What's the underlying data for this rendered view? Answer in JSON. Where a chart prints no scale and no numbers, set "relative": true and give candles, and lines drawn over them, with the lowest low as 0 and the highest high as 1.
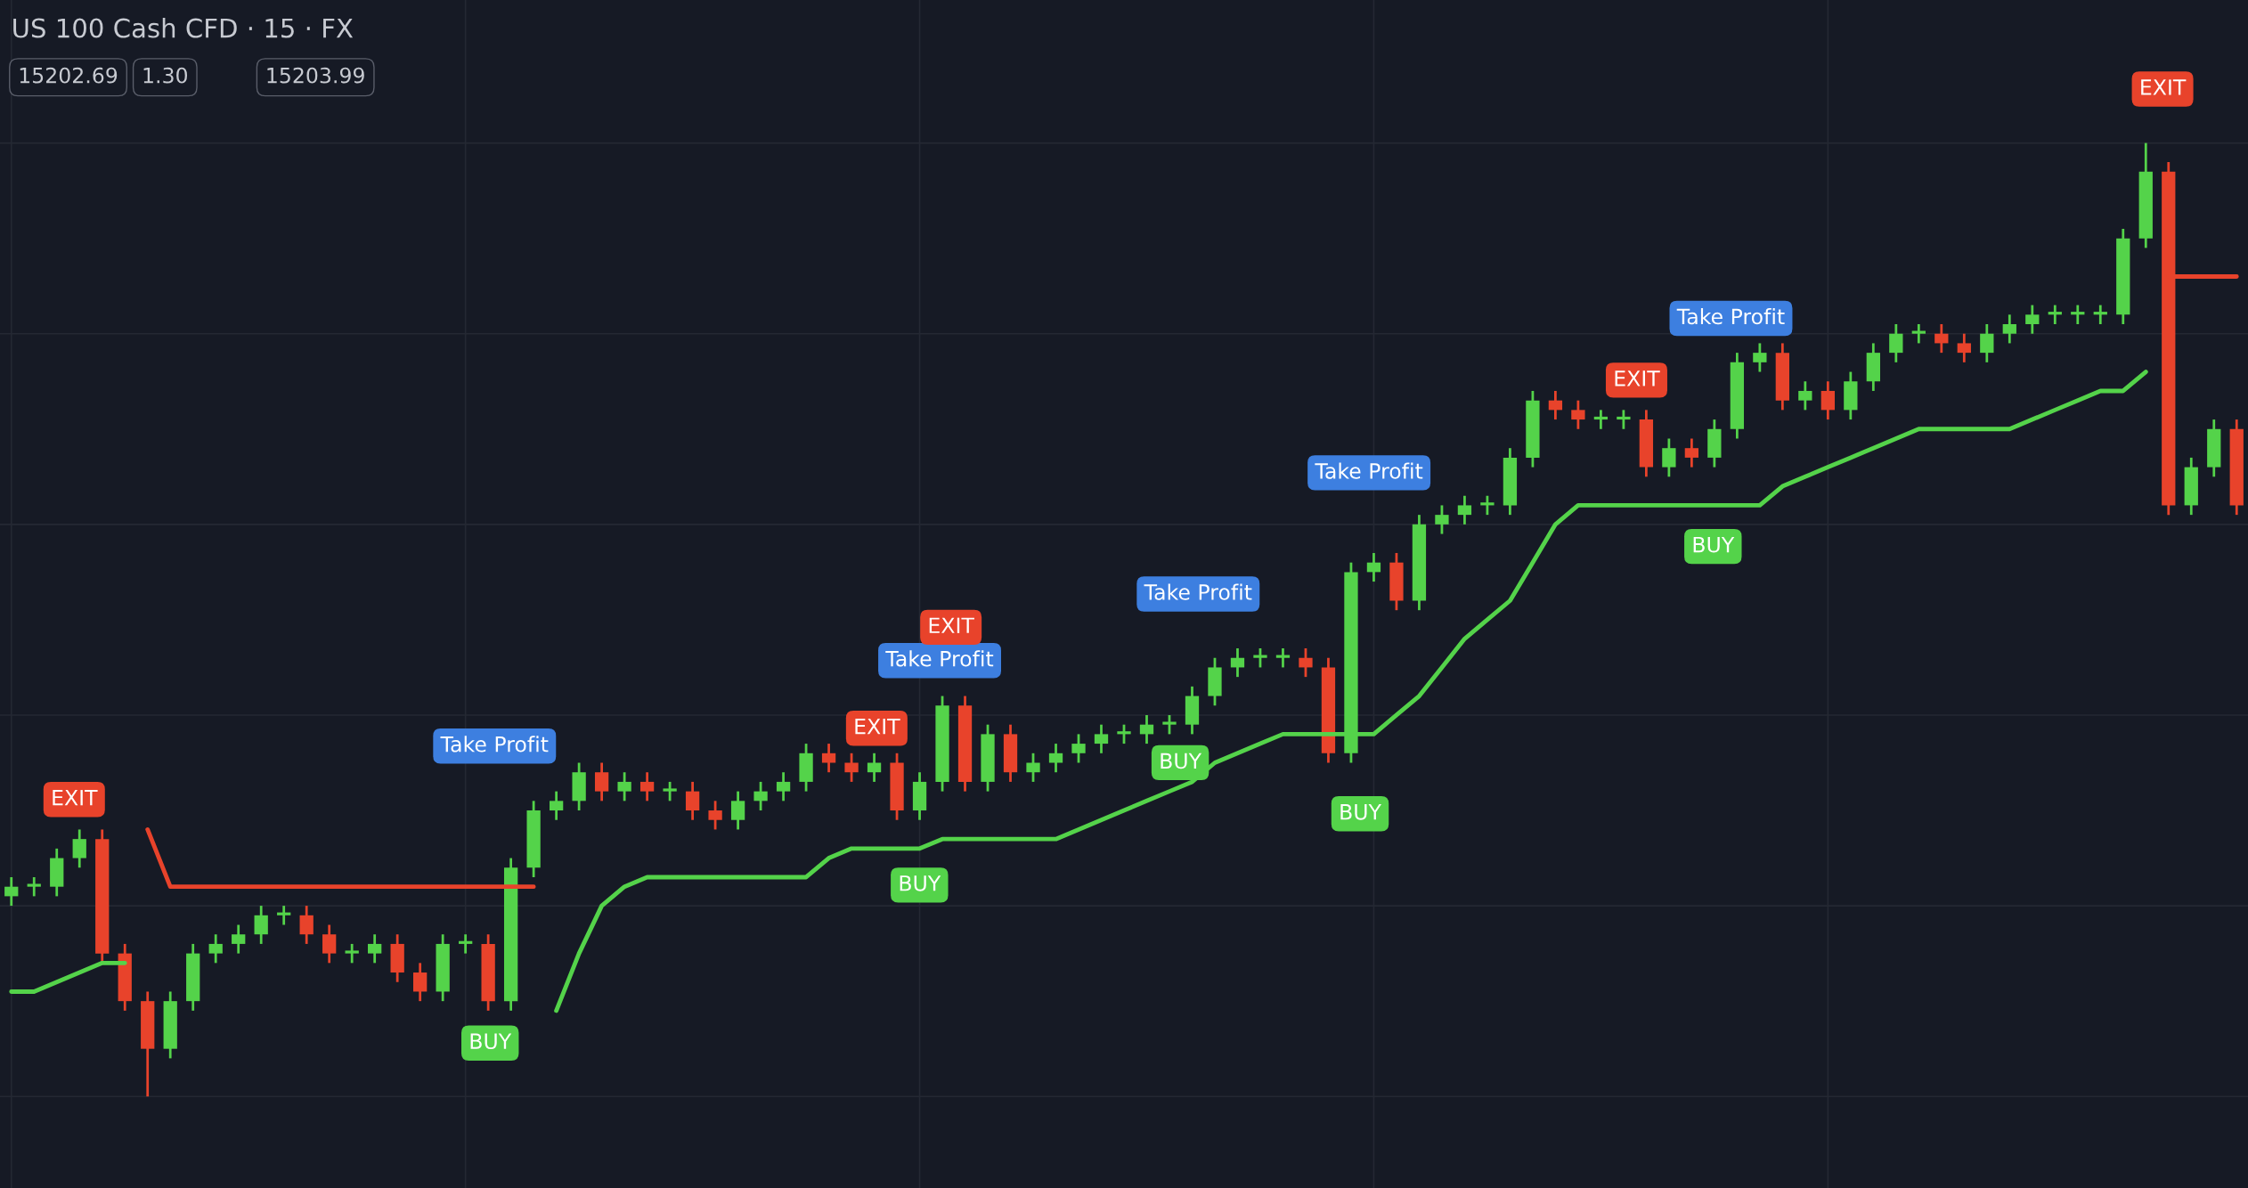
{
  "chart_data": {
    "type": "candlestick",
    "relative": true,
    "title": "US 100 Cash CFD · 15 · FX",
    "grid": true,
    "categories": [
      null,
      null,
      null,
      null,
      null,
      null,
      null,
      null,
      null,
      null,
      null,
      null,
      null,
      null,
      null,
      null,
      null,
      null,
      null,
      null,
      null,
      null,
      null,
      null,
      null,
      null,
      null,
      null,
      null,
      null,
      null,
      null,
      null,
      null,
      null,
      null,
      null,
      null,
      null,
      null,
      null,
      null,
      null,
      null,
      null,
      null,
      null,
      null,
      null,
      null,
      null,
      null,
      null,
      null,
      null,
      null,
      null,
      null,
      null,
      null,
      null,
      null,
      null,
      null,
      null,
      null,
      null,
      null,
      null,
      null,
      null,
      null,
      null,
      null,
      null,
      null,
      null,
      null,
      null,
      null,
      null,
      null,
      null,
      null,
      null,
      null,
      null,
      null,
      null,
      null,
      null,
      null,
      null,
      null,
      null,
      null,
      null,
      null,
      null
    ],
    "ohlc": [
      [
        0.21,
        0.23,
        0.2,
        0.22
      ],
      [
        0.22,
        0.23,
        0.21,
        0.22
      ],
      [
        0.22,
        0.26,
        0.21,
        0.25
      ],
      [
        0.25,
        0.28,
        0.24,
        0.27
      ],
      [
        0.27,
        0.28,
        0.14,
        0.15
      ],
      [
        0.15,
        0.16,
        0.09,
        0.1
      ],
      [
        0.1,
        0.11,
        0.0,
        0.05
      ],
      [
        0.05,
        0.11,
        0.04,
        0.1
      ],
      [
        0.1,
        0.16,
        0.09,
        0.15
      ],
      [
        0.15,
        0.17,
        0.14,
        0.16
      ],
      [
        0.16,
        0.18,
        0.15,
        0.17
      ],
      [
        0.17,
        0.2,
        0.16,
        0.19
      ],
      [
        0.19,
        0.2,
        0.18,
        0.19
      ],
      [
        0.19,
        0.2,
        0.16,
        0.17
      ],
      [
        0.17,
        0.18,
        0.14,
        0.15
      ],
      [
        0.15,
        0.16,
        0.14,
        0.15
      ],
      [
        0.15,
        0.17,
        0.14,
        0.16
      ],
      [
        0.16,
        0.17,
        0.12,
        0.13
      ],
      [
        0.13,
        0.14,
        0.1,
        0.11
      ],
      [
        0.11,
        0.17,
        0.1,
        0.16
      ],
      [
        0.16,
        0.17,
        0.15,
        0.16
      ],
      [
        0.16,
        0.17,
        0.09,
        0.1
      ],
      [
        0.1,
        0.25,
        0.09,
        0.24
      ],
      [
        0.24,
        0.31,
        0.23,
        0.3
      ],
      [
        0.3,
        0.32,
        0.29,
        0.31
      ],
      [
        0.31,
        0.35,
        0.3,
        0.34
      ],
      [
        0.34,
        0.35,
        0.31,
        0.32
      ],
      [
        0.32,
        0.34,
        0.31,
        0.33
      ],
      [
        0.33,
        0.34,
        0.31,
        0.32
      ],
      [
        0.32,
        0.33,
        0.31,
        0.32
      ],
      [
        0.32,
        0.33,
        0.29,
        0.3
      ],
      [
        0.3,
        0.31,
        0.28,
        0.29
      ],
      [
        0.29,
        0.32,
        0.28,
        0.31
      ],
      [
        0.31,
        0.33,
        0.3,
        0.32
      ],
      [
        0.32,
        0.34,
        0.31,
        0.33
      ],
      [
        0.33,
        0.37,
        0.32,
        0.36
      ],
      [
        0.36,
        0.37,
        0.34,
        0.35
      ],
      [
        0.35,
        0.36,
        0.33,
        0.34
      ],
      [
        0.34,
        0.36,
        0.33,
        0.35
      ],
      [
        0.35,
        0.36,
        0.29,
        0.3
      ],
      [
        0.3,
        0.34,
        0.29,
        0.33
      ],
      [
        0.33,
        0.42,
        0.32,
        0.41
      ],
      [
        0.41,
        0.42,
        0.32,
        0.33
      ],
      [
        0.33,
        0.39,
        0.32,
        0.38
      ],
      [
        0.38,
        0.39,
        0.33,
        0.34
      ],
      [
        0.34,
        0.36,
        0.33,
        0.35
      ],
      [
        0.35,
        0.37,
        0.34,
        0.36
      ],
      [
        0.36,
        0.38,
        0.35,
        0.37
      ],
      [
        0.37,
        0.39,
        0.36,
        0.38
      ],
      [
        0.38,
        0.39,
        0.37,
        0.38
      ],
      [
        0.38,
        0.4,
        0.37,
        0.39
      ],
      [
        0.39,
        0.4,
        0.38,
        0.39
      ],
      [
        0.39,
        0.43,
        0.38,
        0.42
      ],
      [
        0.42,
        0.46,
        0.41,
        0.45
      ],
      [
        0.45,
        0.47,
        0.44,
        0.46
      ],
      [
        0.46,
        0.47,
        0.45,
        0.46
      ],
      [
        0.46,
        0.47,
        0.45,
        0.46
      ],
      [
        0.46,
        0.47,
        0.44,
        0.45
      ],
      [
        0.45,
        0.46,
        0.35,
        0.36
      ],
      [
        0.36,
        0.56,
        0.35,
        0.55
      ],
      [
        0.55,
        0.57,
        0.54,
        0.56
      ],
      [
        0.56,
        0.57,
        0.51,
        0.52
      ],
      [
        0.52,
        0.61,
        0.51,
        0.6
      ],
      [
        0.6,
        0.62,
        0.59,
        0.61
      ],
      [
        0.61,
        0.63,
        0.6,
        0.62
      ],
      [
        0.62,
        0.63,
        0.61,
        0.62
      ],
      [
        0.62,
        0.68,
        0.61,
        0.67
      ],
      [
        0.67,
        0.74,
        0.66,
        0.73
      ],
      [
        0.73,
        0.74,
        0.71,
        0.72
      ],
      [
        0.72,
        0.73,
        0.7,
        0.71
      ],
      [
        0.71,
        0.72,
        0.7,
        0.71
      ],
      [
        0.71,
        0.72,
        0.7,
        0.71
      ],
      [
        0.71,
        0.72,
        0.65,
        0.66
      ],
      [
        0.66,
        0.69,
        0.65,
        0.68
      ],
      [
        0.68,
        0.69,
        0.66,
        0.67
      ],
      [
        0.67,
        0.71,
        0.66,
        0.7
      ],
      [
        0.7,
        0.78,
        0.69,
        0.77
      ],
      [
        0.77,
        0.79,
        0.76,
        0.78
      ],
      [
        0.78,
        0.79,
        0.72,
        0.73
      ],
      [
        0.73,
        0.75,
        0.72,
        0.74
      ],
      [
        0.74,
        0.75,
        0.71,
        0.72
      ],
      [
        0.72,
        0.76,
        0.71,
        0.75
      ],
      [
        0.75,
        0.79,
        0.74,
        0.78
      ],
      [
        0.78,
        0.81,
        0.77,
        0.8
      ],
      [
        0.8,
        0.81,
        0.79,
        0.8
      ],
      [
        0.8,
        0.81,
        0.78,
        0.79
      ],
      [
        0.79,
        0.8,
        0.77,
        0.78
      ],
      [
        0.78,
        0.81,
        0.77,
        0.8
      ],
      [
        0.8,
        0.82,
        0.79,
        0.81
      ],
      [
        0.81,
        0.83,
        0.8,
        0.82
      ],
      [
        0.82,
        0.83,
        0.81,
        0.82
      ],
      [
        0.82,
        0.83,
        0.81,
        0.82
      ],
      [
        0.82,
        0.83,
        0.81,
        0.82
      ],
      [
        0.82,
        0.91,
        0.81,
        0.9
      ],
      [
        0.9,
        1.0,
        0.89,
        0.97
      ],
      [
        0.97,
        0.98,
        0.61,
        0.62
      ],
      [
        0.62,
        0.67,
        0.61,
        0.66
      ],
      [
        0.66,
        0.71,
        0.65,
        0.7
      ],
      [
        0.7,
        0.71,
        0.61,
        0.62
      ]
    ],
    "colors": [
      "#54d34a",
      "#54d34a",
      "#54d34a",
      "#54d34a",
      "#e8432b",
      "#e8432b",
      "#e8432b",
      "#54d34a",
      "#54d34a",
      "#54d34a",
      "#54d34a",
      "#54d34a",
      "#54d34a",
      "#e8432b",
      "#e8432b",
      "#54d34a",
      "#54d34a",
      "#e8432b",
      "#e8432b",
      "#54d34a",
      "#54d34a",
      "#e8432b",
      "#54d34a",
      "#54d34a",
      "#54d34a",
      "#54d34a",
      "#e8432b",
      "#54d34a",
      "#e8432b",
      "#54d34a",
      "#e8432b",
      "#e8432b",
      "#54d34a",
      "#54d34a",
      "#54d34a",
      "#54d34a",
      "#e8432b",
      "#e8432b",
      "#54d34a",
      "#e8432b",
      "#54d34a",
      "#54d34a",
      "#e8432b",
      "#54d34a",
      "#e8432b",
      "#54d34a",
      "#54d34a",
      "#54d34a",
      "#54d34a",
      "#54d34a",
      "#54d34a",
      "#54d34a",
      "#54d34a",
      "#54d34a",
      "#54d34a",
      "#54d34a",
      "#54d34a",
      "#e8432b",
      "#e8432b",
      "#54d34a",
      "#54d34a",
      "#e8432b",
      "#54d34a",
      "#54d34a",
      "#54d34a",
      "#54d34a",
      "#54d34a",
      "#54d34a",
      "#e8432b",
      "#e8432b",
      "#54d34a",
      "#54d34a",
      "#e8432b",
      "#54d34a",
      "#e8432b",
      "#54d34a",
      "#54d34a",
      "#54d34a",
      "#e8432b",
      "#54d34a",
      "#e8432b",
      "#54d34a",
      "#54d34a",
      "#54d34a",
      "#54d34a",
      "#e8432b",
      "#e8432b",
      "#54d34a",
      "#54d34a",
      "#54d34a",
      "#54d34a",
      "#54d34a",
      "#54d34a",
      "#54d34a",
      "#54d34a",
      "#e8432b",
      "#54d34a",
      "#54d34a",
      "#e8432b"
    ],
    "series": [
      {
        "type": "line",
        "color": "#54d34a",
        "values": [
          0.11,
          0.11,
          0.12,
          0.13,
          0.14,
          0.14,
          null,
          null,
          null,
          null,
          null,
          null,
          null,
          null,
          null,
          null,
          null,
          null,
          null,
          null,
          null,
          null,
          null,
          null,
          0.09,
          0.15,
          0.2,
          0.22,
          0.23,
          0.23,
          0.23,
          0.23,
          0.23,
          0.23,
          0.23,
          0.23,
          0.25,
          0.26,
          0.26,
          0.26,
          0.26,
          0.27,
          0.27,
          0.27,
          0.27,
          0.27,
          0.27,
          0.28,
          0.29,
          0.3,
          0.31,
          0.32,
          0.33,
          0.35,
          0.36,
          0.37,
          0.38,
          0.38,
          0.38,
          0.38,
          0.38,
          0.4,
          0.42,
          0.45,
          0.48,
          0.5,
          0.52,
          0.56,
          0.6,
          0.62,
          0.62,
          0.62,
          0.62,
          0.62,
          0.62,
          0.62,
          0.62,
          0.62,
          0.64,
          0.65,
          0.66,
          0.67,
          0.68,
          0.69,
          0.7,
          0.7,
          0.7,
          0.7,
          0.7,
          0.71,
          0.72,
          0.73,
          0.74,
          0.74,
          0.76,
          null,
          null,
          null,
          null
        ]
      },
      {
        "type": "line",
        "color": "#e8432b",
        "values": [
          null,
          null,
          null,
          null,
          null,
          null,
          0.28,
          0.22,
          0.22,
          0.22,
          0.22,
          0.22,
          0.22,
          0.22,
          0.22,
          0.22,
          0.22,
          0.22,
          0.22,
          0.22,
          0.22,
          0.22,
          0.22,
          0.22,
          null,
          null,
          null,
          null,
          null,
          null,
          null,
          null,
          null,
          null,
          null,
          null,
          null,
          null,
          null,
          null,
          null,
          null,
          null,
          null,
          null,
          null,
          null,
          null,
          null,
          null,
          null,
          null,
          null,
          null,
          null,
          null,
          null,
          null,
          null,
          null,
          null,
          null,
          null,
          null,
          null,
          null,
          null,
          null,
          null,
          null,
          null,
          null,
          null,
          null,
          null,
          null,
          null,
          null,
          null,
          null,
          null,
          null,
          null,
          null,
          null,
          null,
          null,
          null,
          null,
          null,
          null,
          null,
          null,
          null,
          null,
          0.86,
          0.86,
          0.86,
          0.86
        ]
      }
    ],
    "annotations": [
      "15202.69",
      "1.30",
      "15203.99",
      "EXIT",
      "BUY",
      "Take Profit",
      "EXIT",
      "BUY",
      "Take Profit",
      "EXIT",
      "BUY",
      "Take Profit",
      "BUY",
      "Take Profit",
      "EXIT",
      "BUY",
      "Take Profit",
      "EXIT"
    ]
  }
}
